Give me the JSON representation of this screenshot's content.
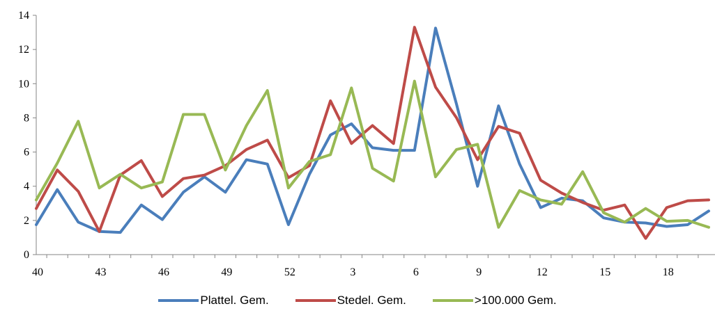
{
  "chart_data": {
    "type": "line",
    "title": "",
    "xlabel": "",
    "ylabel": "",
    "ylim": [
      0,
      14
    ],
    "yticks": [
      0,
      2,
      4,
      6,
      8,
      10,
      12,
      14
    ],
    "x": [
      "40",
      "41",
      "42",
      "43",
      "44",
      "45",
      "46",
      "47",
      "48",
      "49",
      "50",
      "51",
      "52",
      "53",
      "2",
      "3",
      "4",
      "5",
      "6",
      "7",
      "8",
      "9",
      "10",
      "11",
      "12",
      "13",
      "14",
      "15",
      "16",
      "17",
      "18",
      "19",
      "20"
    ],
    "x_tick_labels_shown": [
      "40",
      "43",
      "46",
      "49",
      "52",
      "3",
      "6",
      "9",
      "12",
      "15",
      "18"
    ],
    "grid": false,
    "legend_position": "bottom",
    "series": [
      {
        "name": "Plattel. Gem.",
        "color": "#4a7ebb",
        "values": [
          1.75,
          3.8,
          1.9,
          1.35,
          1.3,
          2.9,
          2.05,
          3.65,
          4.55,
          3.65,
          5.55,
          5.3,
          1.75,
          4.7,
          7.0,
          7.65,
          6.25,
          6.1,
          6.1,
          13.25,
          8.8,
          4.0,
          8.7,
          5.3,
          2.75,
          3.3,
          3.15,
          2.15,
          1.9,
          1.85,
          1.65,
          1.75,
          2.55
        ]
      },
      {
        "name": "Stedel. Gem.",
        "color": "#be4b48",
        "values": [
          2.7,
          4.95,
          3.7,
          1.35,
          4.65,
          5.5,
          3.4,
          4.45,
          4.65,
          5.2,
          6.15,
          6.7,
          4.5,
          5.2,
          9.0,
          6.5,
          7.55,
          6.5,
          13.3,
          9.8,
          8.0,
          5.55,
          7.5,
          7.1,
          4.35,
          3.6,
          3.05,
          2.6,
          2.9,
          0.95,
          2.75,
          3.15,
          3.2
        ]
      },
      {
        "name": ">100.000 Gem.",
        "color": "#98b954",
        "values": [
          3.2,
          5.35,
          7.8,
          3.9,
          4.7,
          3.9,
          4.25,
          8.2,
          8.2,
          4.95,
          7.55,
          9.6,
          3.9,
          5.45,
          5.85,
          9.75,
          5.05,
          4.3,
          10.15,
          4.55,
          6.15,
          6.45,
          1.6,
          3.75,
          3.2,
          2.95,
          4.85,
          2.45,
          1.9,
          2.7,
          1.95,
          2.0,
          1.6
        ]
      }
    ]
  }
}
